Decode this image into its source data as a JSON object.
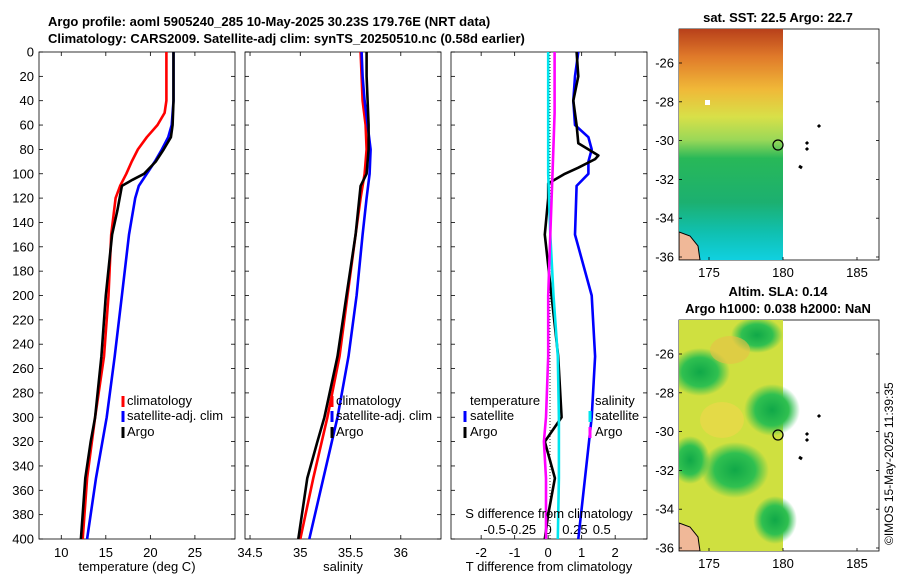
{
  "header": {
    "line1": "Argo profile: aoml 5905240_285 10-May-2025 30.23S 179.76E (NRT data)",
    "line2": "Climatology: CARS2009. Satellite-adj clim: synTS_20250510.nc (0.58d earlier)"
  },
  "colors": {
    "climatology": "#ff0000",
    "satellite": "#0000ff",
    "argo": "#000000",
    "sat_t": "#00e5ee",
    "sat_s": "#ff00ff"
  },
  "chart_data": [
    {
      "id": "temperature",
      "type": "line",
      "xlabel": "temperature (deg C)",
      "xlim": [
        7.5,
        29.5
      ],
      "xticks": [
        10,
        15,
        20,
        25
      ],
      "xtick_labels": [
        "10",
        "15",
        "20",
        "25"
      ],
      "ylim": [
        0,
        400
      ],
      "yticks": [
        0,
        20,
        40,
        60,
        80,
        100,
        120,
        140,
        160,
        180,
        200,
        220,
        240,
        260,
        280,
        300,
        320,
        340,
        360,
        380,
        400
      ],
      "ytick_labels": [
        "0",
        "20",
        "40",
        "60",
        "80",
        "100",
        "120",
        "140",
        "160",
        "180",
        "200",
        "220",
        "240",
        "260",
        "280",
        "300",
        "320",
        "340",
        "360",
        "380",
        "400"
      ],
      "legend": [
        "climatology",
        "satellite-adj. clim",
        "Argo"
      ],
      "series": [
        {
          "name": "climatology",
          "color": "#ff0000",
          "depth": [
            0,
            20,
            40,
            50,
            60,
            70,
            80,
            90,
            100,
            110,
            120,
            150,
            200,
            250,
            300,
            350,
            400
          ],
          "values": [
            21.8,
            21.8,
            21.8,
            21.6,
            20.8,
            19.6,
            18.6,
            17.9,
            17.3,
            16.6,
            16.1,
            15.6,
            15.3,
            14.8,
            13.8,
            12.9,
            12.4
          ]
        },
        {
          "name": "satellite-adj. clim",
          "color": "#0000ff",
          "depth": [
            0,
            20,
            40,
            60,
            70,
            80,
            90,
            100,
            110,
            120,
            150,
            200,
            250,
            300,
            350,
            400
          ],
          "values": [
            22.6,
            22.6,
            22.6,
            22.4,
            22.0,
            21.3,
            20.5,
            19.6,
            18.7,
            18.3,
            17.6,
            16.8,
            16.0,
            15.1,
            13.9,
            12.9
          ]
        },
        {
          "name": "Argo",
          "color": "#000000",
          "depth": [
            0,
            20,
            40,
            60,
            70,
            80,
            90,
            100,
            105,
            110,
            130,
            150,
            200,
            250,
            300,
            320,
            350,
            400
          ],
          "values": [
            22.6,
            22.6,
            22.6,
            22.5,
            22.3,
            21.5,
            20.6,
            19.3,
            18.0,
            16.8,
            16.3,
            15.7,
            15.0,
            14.5,
            13.8,
            13.3,
            12.7,
            12.2
          ]
        }
      ]
    },
    {
      "id": "salinity",
      "type": "line",
      "xlabel": "salinity",
      "xlim": [
        34.45,
        36.4
      ],
      "xticks": [
        34.5,
        35,
        35.5,
        36
      ],
      "xtick_labels": [
        "34.5",
        "35",
        "35.5",
        "36"
      ],
      "ylim": [
        0,
        400
      ],
      "legend": [
        "climatology",
        "satellite-adj. clim",
        "Argo"
      ],
      "series": [
        {
          "name": "climatology",
          "color": "#ff0000",
          "depth": [
            0,
            20,
            40,
            60,
            80,
            100,
            120,
            150,
            200,
            250,
            300,
            350,
            400
          ],
          "values": [
            35.6,
            35.61,
            35.62,
            35.65,
            35.66,
            35.64,
            35.6,
            35.55,
            35.47,
            35.39,
            35.27,
            35.13,
            35.0
          ]
        },
        {
          "name": "satellite-adj. clim",
          "color": "#0000ff",
          "depth": [
            0,
            20,
            40,
            60,
            80,
            100,
            120,
            150,
            200,
            250,
            300,
            350,
            400
          ],
          "values": [
            35.61,
            35.62,
            35.64,
            35.67,
            35.7,
            35.69,
            35.66,
            35.62,
            35.56,
            35.48,
            35.37,
            35.23,
            35.09
          ]
        },
        {
          "name": "Argo",
          "color": "#000000",
          "depth": [
            0,
            20,
            40,
            60,
            80,
            100,
            110,
            150,
            200,
            250,
            300,
            320,
            350,
            400
          ],
          "values": [
            35.66,
            35.66,
            35.67,
            35.68,
            35.68,
            35.66,
            35.6,
            35.55,
            35.46,
            35.37,
            35.24,
            35.17,
            35.07,
            34.98
          ]
        }
      ]
    },
    {
      "id": "difference",
      "type": "line",
      "xlabel": "T difference from climatology",
      "xlim": [
        -2.9,
        2.95
      ],
      "xticks": [
        -2,
        -1,
        0,
        1,
        2
      ],
      "xtick_labels": [
        "-2",
        "-1",
        "0",
        "1",
        "2"
      ],
      "s_axis_label": "S difference from climatology",
      "s_xticks": [
        -0.5,
        -0.25,
        0,
        0.25,
        0.5
      ],
      "s_xtick_labels": [
        "-0.5",
        "-0.25",
        "0",
        "0.25",
        "0.5"
      ],
      "ylim": [
        0,
        400
      ],
      "legend_t_title": "temperature",
      "legend_s_title": "salinity",
      "legend_t": [
        "satellite",
        "Argo"
      ],
      "legend_s": [
        "satellite",
        "Argo"
      ],
      "series": [
        {
          "name": "T satellite",
          "color": "#0000ff",
          "depth": [
            0,
            20,
            40,
            60,
            70,
            80,
            90,
            100,
            110,
            150,
            200,
            250,
            300,
            350,
            400
          ],
          "values": [
            0.9,
            0.8,
            0.75,
            0.8,
            1.2,
            1.3,
            1.2,
            1.2,
            0.85,
            0.8,
            1.3,
            1.4,
            1.3,
            1.1,
            0.9
          ]
        },
        {
          "name": "T Argo",
          "color": "#000000",
          "depth": [
            0,
            20,
            40,
            60,
            75,
            80,
            85,
            88,
            95,
            100,
            108,
            120,
            150,
            200,
            250,
            300,
            320,
            350,
            380,
            400
          ],
          "values": [
            0.85,
            0.9,
            0.75,
            0.85,
            0.9,
            1.2,
            1.5,
            1.4,
            0.9,
            0.5,
            0.0,
            0.0,
            -0.1,
            0.1,
            0.3,
            0.4,
            -0.1,
            0.2,
            0.0,
            -0.1
          ]
        },
        {
          "name": "S satellite",
          "color": "#00e5ee",
          "depth": [
            0,
            50,
            100,
            150,
            200,
            250,
            300,
            350,
            400
          ],
          "values": [
            0.0,
            0.0,
            0.0,
            0.02,
            0.05,
            0.09,
            0.1,
            0.1,
            0.09
          ]
        },
        {
          "name": "S Argo",
          "color": "#ff00ff",
          "depth": [
            0,
            50,
            100,
            150,
            200,
            250,
            300,
            320,
            350,
            400
          ],
          "values": [
            0.06,
            0.06,
            0.04,
            0.02,
            0.0,
            0.0,
            -0.02,
            -0.04,
            -0.02,
            -0.02
          ]
        }
      ]
    }
  ],
  "maps": [
    {
      "title": "sat. SST: 22.5 Argo: 22.7",
      "lon_ticks": [
        "175",
        "180",
        "185"
      ],
      "lat_ticks": [
        "-26",
        "-28",
        "-30",
        "-32",
        "-34",
        "-36"
      ]
    },
    {
      "title_line1": "Altim. SLA: 0.14",
      "title_line2": "Argo h1000: 0.038 h2000: NaN",
      "lon_ticks": [
        "175",
        "180",
        "185"
      ],
      "lat_ticks": [
        "-26",
        "-28",
        "-30",
        "-32",
        "-34",
        "-36"
      ]
    }
  ],
  "copyright": "©IMOS 15-May-2025 11:39:35"
}
